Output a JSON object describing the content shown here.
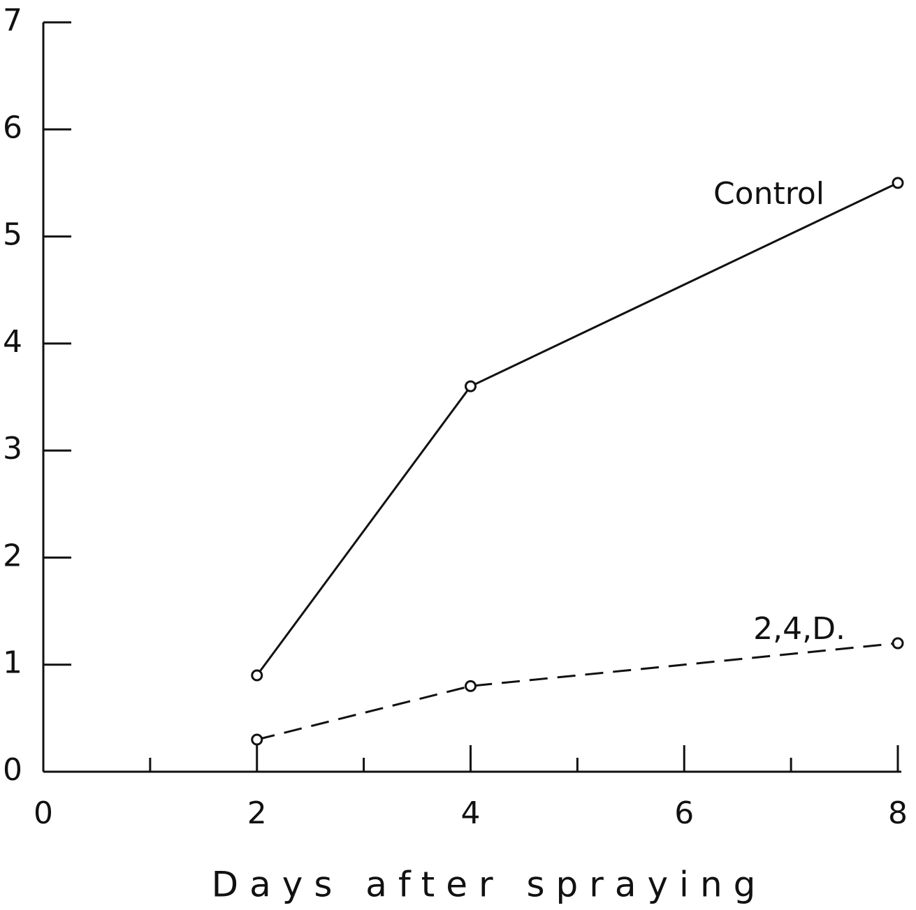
{
  "chart_data": {
    "type": "line",
    "x_label": "Days after spraying",
    "xlim": [
      0,
      8
    ],
    "xticks": [
      0,
      2,
      4,
      6,
      8
    ],
    "xminor_ticks": [
      1,
      3,
      5,
      7
    ],
    "ylim": [
      0,
      7
    ],
    "yticks": [
      0,
      1,
      2,
      3,
      4,
      5,
      6,
      7
    ],
    "grid": false,
    "legend": "inline",
    "x": [
      2,
      4,
      8
    ],
    "series": [
      {
        "name": "Control",
        "color": "#111111",
        "style": "solid",
        "values": [
          0.9,
          3.6,
          5.5
        ]
      },
      {
        "name": "2,4,D.",
        "color": "#111111",
        "style": "dashed",
        "values": [
          0.3,
          0.8,
          1.2
        ]
      }
    ]
  }
}
